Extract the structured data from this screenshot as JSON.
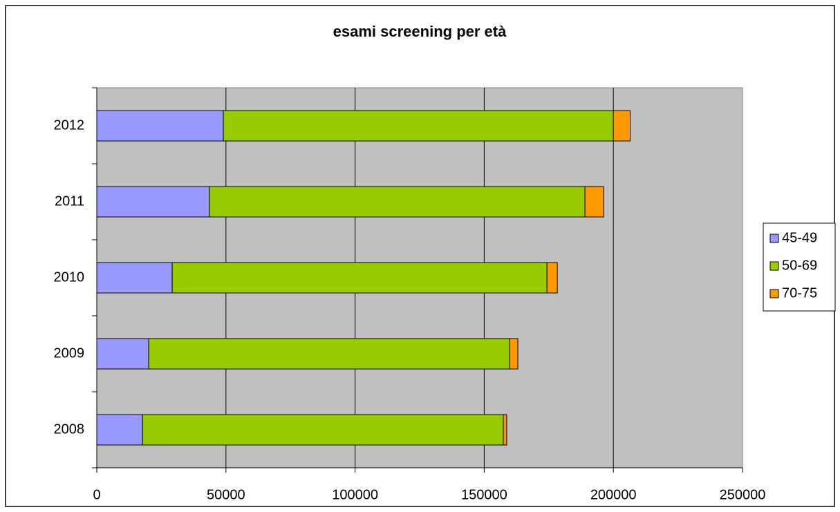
{
  "chart_data": {
    "type": "stacked-barh",
    "title": "esami screening per età",
    "categories": [
      "2008",
      "2009",
      "2010",
      "2011",
      "2012"
    ],
    "series": [
      {
        "name": "45-49",
        "color": "#9999ff",
        "values": [
          17700,
          20100,
          29200,
          43600,
          49000
        ]
      },
      {
        "name": "50-69",
        "color": "#99cc00",
        "values": [
          139700,
          139700,
          145100,
          145400,
          151000
        ]
      },
      {
        "name": "70-75",
        "color": "#ff9900",
        "values": [
          1300,
          3200,
          4000,
          7200,
          6500
        ]
      }
    ],
    "xlim": [
      0,
      250000
    ],
    "xticks": [
      0,
      50000,
      100000,
      150000,
      200000,
      250000
    ],
    "grid": true,
    "legend": "right"
  }
}
